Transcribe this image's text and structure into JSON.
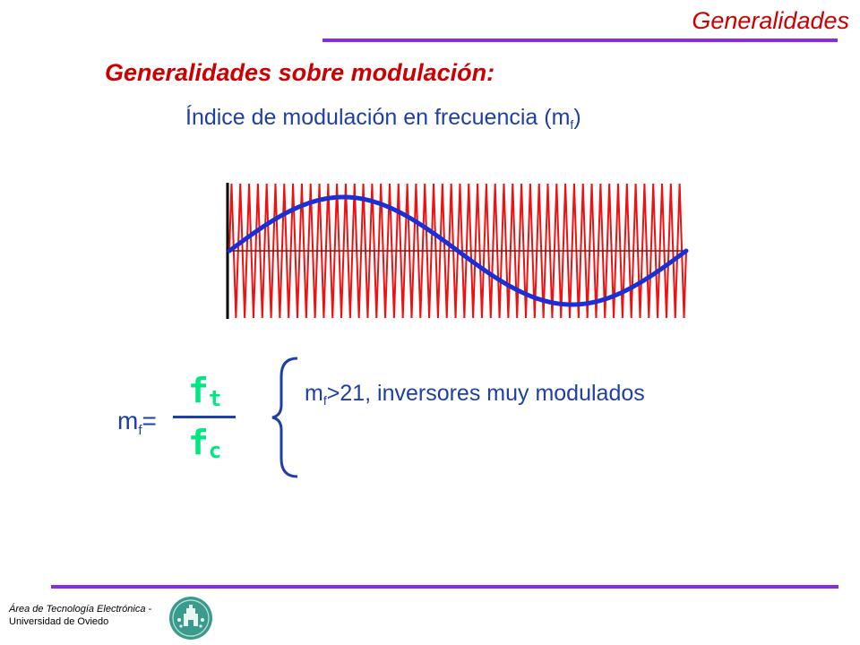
{
  "header": {
    "section_title": "Generalidades"
  },
  "slide": {
    "title": "Generalidades sobre modulación:",
    "subtitle_main": "Índice de modulación en frecuencia (m",
    "subtitle_sub": "f",
    "subtitle_end": ")"
  },
  "formula": {
    "lhs_main": "m",
    "lhs_sub": "f",
    "lhs_eq": "=",
    "numerator_main": "f",
    "numerator_sub": "t",
    "denominator_main": "f",
    "denominator_sub": "c"
  },
  "note": {
    "main": "m",
    "sub": "f",
    "rest": ">21, inversores muy modulados"
  },
  "footer": {
    "line1": "Área de Tecnología Electrónica -",
    "line2": "Universidad de Oviedo"
  },
  "colors": {
    "title_red": "#cc0000",
    "text_blue": "#1f3fa8",
    "rule_purple": "#8a2be2",
    "carrier_red": "#ee1111",
    "modulating_blue": "#1a2fd6",
    "fraction_green": "#00e680"
  },
  "waveform": {
    "carrier_cycles": 52,
    "modulating_cycles": 1
  },
  "icons": {
    "logo": "university-seal-icon",
    "brace": "left-brace-icon"
  }
}
